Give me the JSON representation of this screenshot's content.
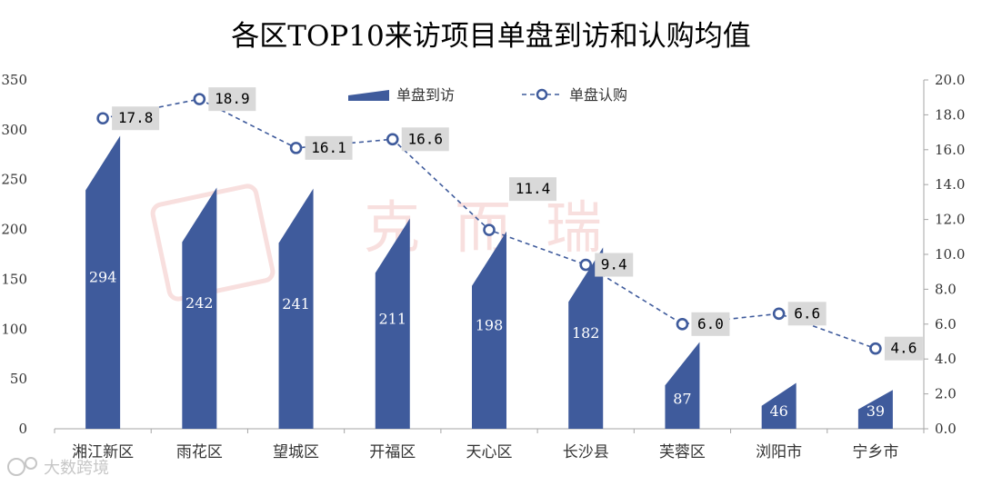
{
  "chart_data": {
    "type": "bar",
    "title": "各区TOP10来访项目单盘到访和认购均值",
    "categories": [
      "湘江新区",
      "雨花区",
      "望城区",
      "开福区",
      "天心区",
      "长沙县",
      "芙蓉区",
      "浏阳市",
      "宁乡市"
    ],
    "series": [
      {
        "name": "单盘到访",
        "kind": "bar",
        "axis": "left",
        "values": [
          294,
          242,
          241,
          211,
          198,
          182,
          87,
          46,
          39
        ],
        "labels": [
          "294",
          "242",
          "241",
          "211",
          "198",
          "182",
          "87",
          "46",
          "39"
        ]
      },
      {
        "name": "单盘认购",
        "kind": "line",
        "axis": "right",
        "values": [
          17.8,
          18.9,
          16.1,
          16.6,
          11.4,
          9.4,
          6.0,
          6.6,
          4.6
        ],
        "labels": [
          "17.8",
          "18.9",
          "16.1",
          "16.6",
          "11.4",
          "9.4",
          "6.0",
          "6.6",
          "4.6"
        ]
      }
    ],
    "y_left": {
      "range": [
        0,
        350
      ],
      "ticks": [
        0,
        50,
        100,
        150,
        200,
        250,
        300,
        350
      ],
      "tick_labels": [
        "0",
        "50",
        "100",
        "150",
        "200",
        "250",
        "300",
        "350"
      ]
    },
    "y_right": {
      "range": [
        0,
        20
      ],
      "ticks": [
        0,
        2,
        4,
        6,
        8,
        10,
        12,
        14,
        16,
        18,
        20
      ],
      "tick_labels": [
        "0.0",
        "2.0",
        "4.0",
        "6.0",
        "8.0",
        "10.0",
        "12.0",
        "14.0",
        "16.0",
        "18.0",
        "20.0"
      ]
    },
    "legend_position": "top-center",
    "grid": false
  },
  "colors": {
    "bar": "#3f5b9c",
    "line": "#3f5b9c",
    "label_box": "#d9d9d9",
    "axis": "#a6a6a6"
  },
  "watermarks": {
    "center": "克而瑞",
    "source": "大数跨境"
  }
}
